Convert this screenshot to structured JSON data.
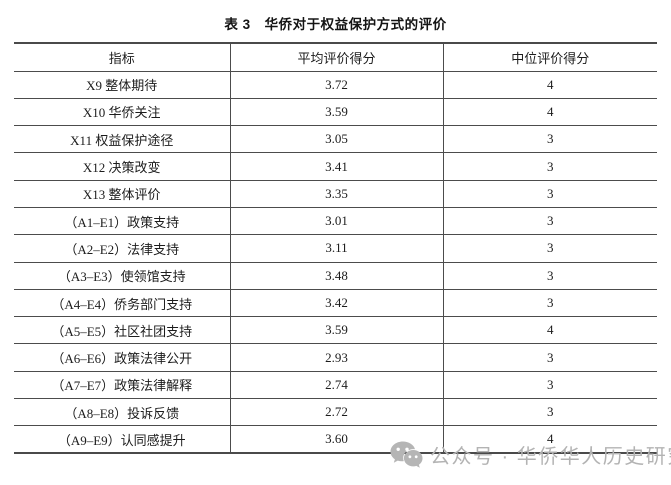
{
  "caption": "表 3　华侨对于权益保护方式的评价",
  "table": {
    "headers": [
      "指标",
      "平均评价得分",
      "中位评价得分"
    ],
    "rows": [
      {
        "indicator": "X9 整体期待",
        "mean": "3.72",
        "median": "4"
      },
      {
        "indicator": "X10 华侨关注",
        "mean": "3.59",
        "median": "4"
      },
      {
        "indicator": "X11 权益保护途径",
        "mean": "3.05",
        "median": "3"
      },
      {
        "indicator": "X12 决策改变",
        "mean": "3.41",
        "median": "3"
      },
      {
        "indicator": "X13 整体评价",
        "mean": "3.35",
        "median": "3"
      },
      {
        "indicator": "（A1–E1）政策支持",
        "mean": "3.01",
        "median": "3"
      },
      {
        "indicator": "（A2–E2）法律支持",
        "mean": "3.11",
        "median": "3"
      },
      {
        "indicator": "（A3–E3）使领馆支持",
        "mean": "3.48",
        "median": "3"
      },
      {
        "indicator": "（A4–E4）侨务部门支持",
        "mean": "3.42",
        "median": "3"
      },
      {
        "indicator": "（A5–E5）社区社团支持",
        "mean": "3.59",
        "median": "4"
      },
      {
        "indicator": "（A6–E6）政策法律公开",
        "mean": "2.93",
        "median": "3"
      },
      {
        "indicator": "（A7–E7）政策法律解释",
        "mean": "2.74",
        "median": "3"
      },
      {
        "indicator": "（A8–E8）投诉反馈",
        "mean": "2.72",
        "median": "3"
      },
      {
        "indicator": "（A9–E9）认同感提升",
        "mean": "3.60",
        "median": "4"
      }
    ]
  },
  "watermark": {
    "icon": "wechat-icon",
    "text": "公众号 · 华侨华人历史研究",
    "color": "#b3b3b3"
  },
  "colors": {
    "border_heavy": "#4a4a4a",
    "border_light": "#4c4c4c",
    "text": "#1c1c1c",
    "background": "#ffffff"
  }
}
